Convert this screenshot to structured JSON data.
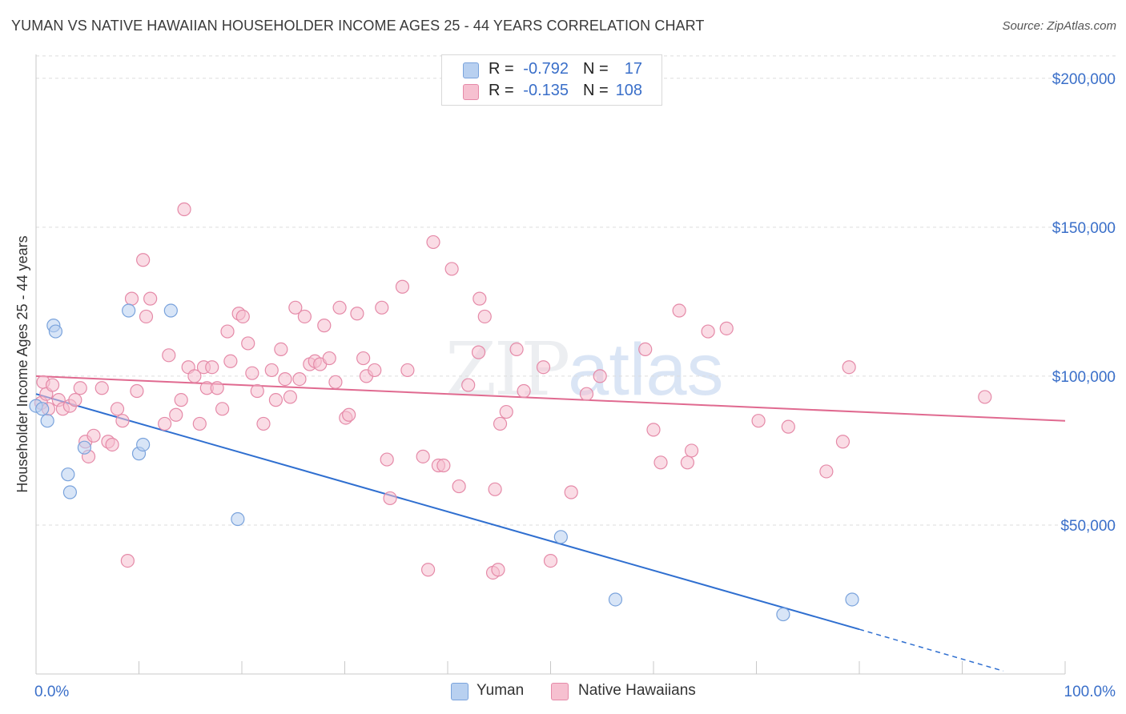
{
  "header": {
    "title": "YUMAN VS NATIVE HAWAIIAN HOUSEHOLDER INCOME AGES 25 - 44 YEARS CORRELATION CHART",
    "source": "Source: ZipAtlas.com"
  },
  "watermark": {
    "zip": "ZIP",
    "atlas": "atlas"
  },
  "legend_top": {
    "rows": [
      {
        "r_label": "R =",
        "r_value": "-0.792",
        "n_label": "N =",
        "n_value": "17",
        "color": "#b8d0f0"
      },
      {
        "r_label": "R =",
        "r_value": "-0.135",
        "n_label": "N =",
        "n_value": "108",
        "color": "#f6c0d0"
      }
    ]
  },
  "legend_bottom": [
    {
      "label": "Yuman",
      "color": "#b8d0f0"
    },
    {
      "label": "Native Hawaiians",
      "color": "#f6c0d0"
    }
  ],
  "chart_data": {
    "type": "scatter",
    "title": "YUMAN VS NATIVE HAWAIIAN HOUSEHOLDER INCOME AGES 25 - 44 YEARS CORRELATION CHART",
    "xlabel": "",
    "ylabel": "Householder Income Ages 25 - 44 years",
    "xlim": [
      0,
      100
    ],
    "ylim": [
      0,
      208000
    ],
    "x_tick_labels": [
      "0.0%",
      "100.0%"
    ],
    "y_ticks": [
      50000,
      100000,
      150000,
      200000
    ],
    "y_tick_labels": [
      "$50,000",
      "$100,000",
      "$150,000",
      "$200,000"
    ],
    "grid": true,
    "legend_position": "top-center",
    "colors": {
      "yuman_fill": "#b8d0f0",
      "yuman_stroke": "#7aa3dc",
      "yuman_line": "#2f6fd0",
      "hawaiian_fill": "#f6c0d0",
      "hawaiian_stroke": "#e58aa8",
      "hawaiian_line": "#e06a90",
      "tick_label": "#3a6fc9",
      "grid": "#dddddd"
    },
    "series": [
      {
        "name": "Yuman",
        "points": [
          [
            0.0,
            90000
          ],
          [
            0.6,
            89000
          ],
          [
            1.1,
            85000
          ],
          [
            1.7,
            117000
          ],
          [
            1.9,
            115000
          ],
          [
            3.1,
            67000
          ],
          [
            3.3,
            61000
          ],
          [
            4.7,
            76000
          ],
          [
            9.0,
            122000
          ],
          [
            10.0,
            74000
          ],
          [
            10.4,
            77000
          ],
          [
            13.1,
            122000
          ],
          [
            19.6,
            52000
          ],
          [
            51.0,
            46000
          ],
          [
            56.3,
            25000
          ],
          [
            72.6,
            20000
          ],
          [
            79.3,
            25000
          ]
        ],
        "trend": {
          "x0": 0.0,
          "y0": 94000,
          "x1": 80.0,
          "y1": 15000,
          "dash_x1": 94.0,
          "dash_y1": 1000
        }
      },
      {
        "name": "Native Hawaiians",
        "points": [
          [
            0.5,
            91000
          ],
          [
            0.7,
            98000
          ],
          [
            1.0,
            94000
          ],
          [
            1.2,
            89000
          ],
          [
            1.6,
            97000
          ],
          [
            2.2,
            92000
          ],
          [
            2.6,
            89000
          ],
          [
            3.3,
            90000
          ],
          [
            3.8,
            92000
          ],
          [
            4.3,
            96000
          ],
          [
            4.8,
            78000
          ],
          [
            5.1,
            73000
          ],
          [
            5.6,
            80000
          ],
          [
            6.4,
            96000
          ],
          [
            7.0,
            78000
          ],
          [
            7.4,
            77000
          ],
          [
            7.9,
            89000
          ],
          [
            8.4,
            85000
          ],
          [
            8.9,
            38000
          ],
          [
            9.3,
            126000
          ],
          [
            9.8,
            95000
          ],
          [
            10.4,
            139000
          ],
          [
            10.7,
            120000
          ],
          [
            11.1,
            126000
          ],
          [
            12.5,
            84000
          ],
          [
            12.9,
            107000
          ],
          [
            13.6,
            87000
          ],
          [
            14.1,
            92000
          ],
          [
            14.4,
            156000
          ],
          [
            14.8,
            103000
          ],
          [
            15.4,
            100000
          ],
          [
            15.9,
            84000
          ],
          [
            16.3,
            103000
          ],
          [
            16.6,
            96000
          ],
          [
            17.1,
            103000
          ],
          [
            17.6,
            96000
          ],
          [
            18.1,
            89000
          ],
          [
            18.6,
            115000
          ],
          [
            18.9,
            105000
          ],
          [
            19.7,
            121000
          ],
          [
            20.1,
            120000
          ],
          [
            20.6,
            111000
          ],
          [
            21.0,
            101000
          ],
          [
            21.5,
            95000
          ],
          [
            22.1,
            84000
          ],
          [
            22.9,
            102000
          ],
          [
            23.3,
            92000
          ],
          [
            23.8,
            109000
          ],
          [
            24.2,
            99000
          ],
          [
            24.7,
            93000
          ],
          [
            25.2,
            123000
          ],
          [
            25.6,
            99000
          ],
          [
            26.1,
            120000
          ],
          [
            26.6,
            104000
          ],
          [
            27.1,
            105000
          ],
          [
            27.6,
            104000
          ],
          [
            28.0,
            117000
          ],
          [
            28.5,
            106000
          ],
          [
            29.1,
            98000
          ],
          [
            29.5,
            123000
          ],
          [
            30.1,
            86000
          ],
          [
            30.4,
            87000
          ],
          [
            31.2,
            121000
          ],
          [
            31.8,
            106000
          ],
          [
            32.1,
            100000
          ],
          [
            32.9,
            102000
          ],
          [
            33.6,
            123000
          ],
          [
            34.1,
            72000
          ],
          [
            34.4,
            59000
          ],
          [
            35.6,
            130000
          ],
          [
            36.1,
            102000
          ],
          [
            37.6,
            73000
          ],
          [
            38.1,
            35000
          ],
          [
            38.6,
            145000
          ],
          [
            39.1,
            70000
          ],
          [
            39.6,
            70000
          ],
          [
            40.4,
            136000
          ],
          [
            41.1,
            63000
          ],
          [
            42.0,
            97000
          ],
          [
            43.1,
            126000
          ],
          [
            43.0,
            108000
          ],
          [
            43.6,
            120000
          ],
          [
            44.4,
            34000
          ],
          [
            44.9,
            35000
          ],
          [
            44.6,
            62000
          ],
          [
            45.1,
            84000
          ],
          [
            45.7,
            88000
          ],
          [
            46.7,
            109000
          ],
          [
            47.4,
            95000
          ],
          [
            49.3,
            103000
          ],
          [
            50.0,
            38000
          ],
          [
            52.0,
            61000
          ],
          [
            53.5,
            94000
          ],
          [
            54.8,
            100000
          ],
          [
            59.2,
            109000
          ],
          [
            60.0,
            82000
          ],
          [
            60.7,
            71000
          ],
          [
            62.5,
            122000
          ],
          [
            63.3,
            71000
          ],
          [
            63.7,
            75000
          ],
          [
            65.3,
            115000
          ],
          [
            67.1,
            116000
          ],
          [
            70.2,
            85000
          ],
          [
            73.1,
            83000
          ],
          [
            76.8,
            68000
          ],
          [
            78.4,
            78000
          ],
          [
            79.0,
            103000
          ],
          [
            92.2,
            93000
          ]
        ],
        "trend": {
          "x0": 0.0,
          "y0": 100000,
          "x1": 100.0,
          "y1": 85000
        }
      }
    ]
  }
}
